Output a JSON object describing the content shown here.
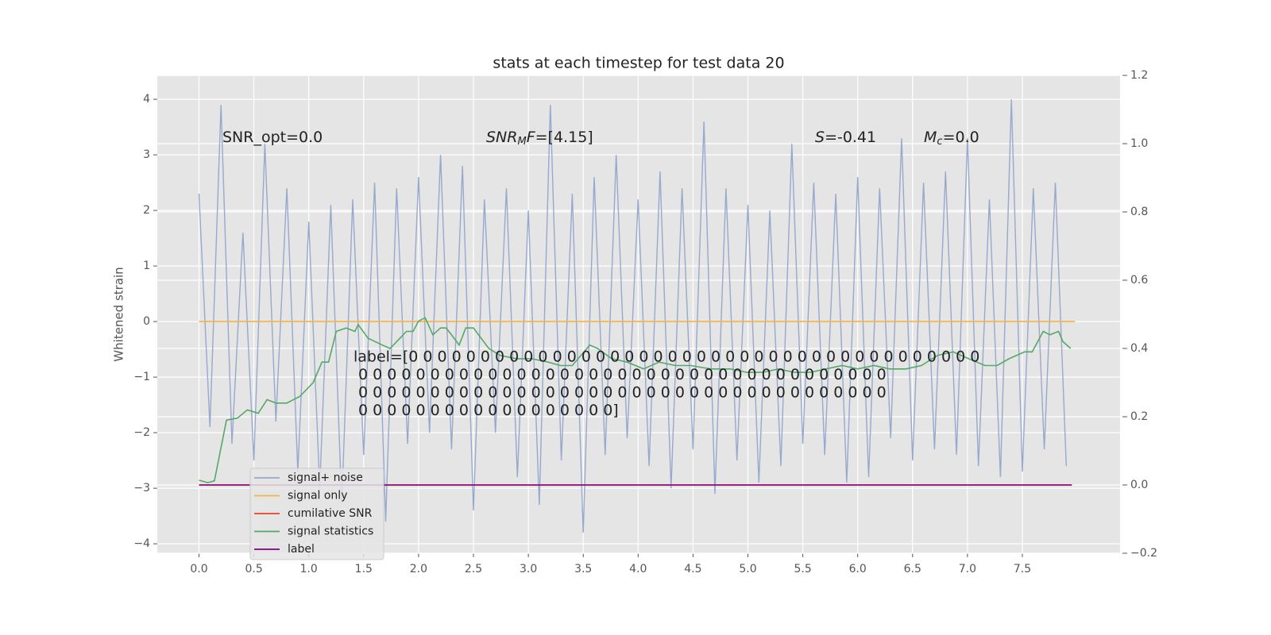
{
  "chart_data": {
    "type": "line",
    "title": "stats at each timestep for test data 20",
    "ylabel": "Whitened strain",
    "xlim": [
      -0.38,
      8.39
    ],
    "ylim": [
      -4.17,
      4.43
    ],
    "y2lim": [
      -0.2,
      1.2
    ],
    "xticks": [
      {
        "value": 0,
        "label": "0.0"
      },
      {
        "value": 0.5,
        "label": "0.5"
      },
      {
        "value": 1,
        "label": "1.0"
      },
      {
        "value": 1.5,
        "label": "1.5"
      },
      {
        "value": 2,
        "label": "2.0"
      },
      {
        "value": 2.5,
        "label": "2.5"
      },
      {
        "value": 3,
        "label": "3.0"
      },
      {
        "value": 3.5,
        "label": "3.5"
      },
      {
        "value": 4,
        "label": "4.0"
      },
      {
        "value": 4.5,
        "label": "4.5"
      },
      {
        "value": 5,
        "label": "5.0"
      },
      {
        "value": 5.5,
        "label": "5.5"
      },
      {
        "value": 6,
        "label": "6.0"
      },
      {
        "value": 6.5,
        "label": "6.5"
      },
      {
        "value": 7,
        "label": "7.0"
      },
      {
        "value": 7.5,
        "label": "7.5"
      }
    ],
    "yticks": [
      {
        "value": -4,
        "label": "−4"
      },
      {
        "value": -3,
        "label": "−3"
      },
      {
        "value": -2,
        "label": "−2"
      },
      {
        "value": -1,
        "label": "−1"
      },
      0,
      1,
      2,
      3,
      4
    ],
    "y2ticks": [
      {
        "value": -0.2,
        "label": "−0.2"
      },
      {
        "value": 0,
        "label": "0.0"
      },
      {
        "value": 0.2,
        "label": "0.2"
      },
      {
        "value": 0.4,
        "label": "0.4"
      },
      {
        "value": 0.6,
        "label": "0.6"
      },
      {
        "value": 0.8,
        "label": "0.8"
      },
      {
        "value": 1.0,
        "label": "1.0"
      },
      {
        "value": 1.2,
        "label": "1.2"
      }
    ],
    "grid": true,
    "legend": "lower left",
    "series": [
      {
        "name": "signal+ noise",
        "color": "#97a9cc",
        "x": [
          0,
          0.1,
          0.2,
          0.3,
          0.4,
          0.5,
          0.6,
          0.7,
          0.8,
          0.9,
          1,
          1.1,
          1.2,
          1.3,
          1.4,
          1.5,
          1.6,
          1.7,
          1.8,
          1.9,
          2,
          2.1,
          2.2,
          2.3,
          2.4,
          2.5,
          2.6,
          2.7,
          2.8,
          2.9,
          3,
          3.1,
          3.2,
          3.3,
          3.4,
          3.5,
          3.6,
          3.7,
          3.8,
          3.9,
          4,
          4.1,
          4.2,
          4.3,
          4.4,
          4.5,
          4.6,
          4.7,
          4.8,
          4.9,
          5,
          5.1,
          5.2,
          5.3,
          5.4,
          5.5,
          5.6,
          5.7,
          5.8,
          5.9,
          6,
          6.1,
          6.2,
          6.3,
          6.4,
          6.5,
          6.6,
          6.7,
          6.8,
          6.9,
          7,
          7.1,
          7.2,
          7.3,
          7.4,
          7.5,
          7.6,
          7.7,
          7.8,
          7.9
        ],
        "values": [
          2.3,
          -1.9,
          3.9,
          -2.2,
          1.6,
          -2.5,
          3.2,
          -1.8,
          2.4,
          -2.7,
          1.8,
          -3.0,
          2.1,
          -3.3,
          2.2,
          -2.4,
          2.5,
          -3.6,
          2.4,
          -2.2,
          2.6,
          -2.0,
          3.0,
          -2.3,
          2.8,
          -3.4,
          2.2,
          -2.0,
          2.4,
          -2.8,
          2.0,
          -3.3,
          3.9,
          -2.5,
          2.3,
          -3.8,
          2.6,
          -2.4,
          3.0,
          -2.1,
          2.2,
          -2.6,
          2.7,
          -3.0,
          2.4,
          -2.3,
          3.6,
          -3.1,
          2.4,
          -2.5,
          2.1,
          -2.9,
          2.0,
          -2.6,
          3.2,
          -2.2,
          2.5,
          -2.4,
          2.3,
          -2.9,
          2.6,
          -2.8,
          2.4,
          -2.1,
          3.3,
          -2.5,
          2.5,
          -2.3,
          2.7,
          -2.4,
          3.3,
          -2.6,
          2.2,
          -2.8,
          4.0,
          -2.7,
          2.4,
          -2.3,
          2.5,
          -2.6
        ]
      },
      {
        "name": "signal only",
        "color": "#f0b449",
        "x": [
          0,
          7.98
        ],
        "values": [
          0,
          0
        ]
      },
      {
        "name": "cumilative SNR",
        "color": "#e8412b",
        "axis": "y2",
        "x": [
          0,
          7.95
        ],
        "values": [
          0,
          0
        ]
      },
      {
        "name": "signal statistics",
        "color": "#55a868",
        "axis": "y2",
        "x": [
          0,
          0.08,
          0.14,
          0.25,
          0.35,
          0.44,
          0.54,
          0.62,
          0.7,
          0.8,
          0.92,
          1.04,
          1.12,
          1.18,
          1.25,
          1.34,
          1.42,
          1.45,
          1.54,
          1.67,
          1.74,
          1.8,
          1.89,
          1.95,
          2.0,
          2.06,
          2.13,
          2.2,
          2.25,
          2.3,
          2.37,
          2.43,
          2.5,
          2.57,
          2.64,
          2.74,
          2.89,
          3.03,
          3.18,
          3.29,
          3.4,
          3.56,
          3.63,
          3.76,
          3.9,
          4.05,
          4.19,
          4.34,
          4.48,
          4.66,
          4.84,
          4.99,
          5.13,
          5.28,
          5.42,
          5.57,
          5.71,
          5.86,
          6.0,
          6.15,
          6.29,
          6.44,
          6.58,
          6.73,
          6.87,
          7.01,
          7.16,
          7.27,
          7.38,
          7.52,
          7.59,
          7.69,
          7.75,
          7.83,
          7.87,
          7.94
        ],
        "values": [
          0.014,
          0.007,
          0.012,
          0.19,
          0.196,
          0.22,
          0.21,
          0.25,
          0.24,
          0.24,
          0.26,
          0.3,
          0.36,
          0.36,
          0.45,
          0.46,
          0.45,
          0.47,
          0.43,
          0.41,
          0.4,
          0.42,
          0.45,
          0.45,
          0.48,
          0.49,
          0.44,
          0.46,
          0.46,
          0.44,
          0.41,
          0.46,
          0.46,
          0.43,
          0.4,
          0.38,
          0.37,
          0.37,
          0.36,
          0.35,
          0.35,
          0.41,
          0.4,
          0.37,
          0.36,
          0.34,
          0.36,
          0.35,
          0.35,
          0.34,
          0.34,
          0.33,
          0.33,
          0.34,
          0.33,
          0.33,
          0.34,
          0.35,
          0.34,
          0.35,
          0.34,
          0.34,
          0.35,
          0.38,
          0.39,
          0.37,
          0.35,
          0.35,
          0.37,
          0.39,
          0.39,
          0.45,
          0.44,
          0.45,
          0.42,
          0.4
        ]
      },
      {
        "name": "label",
        "color": "#800080",
        "axis": "y2",
        "x": [
          0,
          7.95
        ],
        "values": [
          0,
          0
        ]
      }
    ],
    "annotations": [
      {
        "parts": [
          {
            "text": "SNR_opt=0.0"
          }
        ]
      },
      {
        "parts": [
          {
            "text": "SNR",
            "italic": true
          },
          {
            "text": "M",
            "italic": true,
            "sub": true
          },
          {
            "text": "F",
            "italic": true
          },
          {
            "text": "=[4.15]"
          }
        ]
      },
      {
        "parts": [
          {
            "text": "S",
            "italic": true
          },
          {
            "text": "=-0.41"
          }
        ]
      },
      {
        "parts": [
          {
            "text": "M",
            "italic": true
          },
          {
            "text": "c",
            "italic": true,
            "sub": true
          },
          {
            "text": "=0.0"
          }
        ]
      }
    ],
    "label_text": [
      "label=[0 0 0 0 0 0 0 0 0 0 0 0 0 0 0 0 0 0 0 0 0 0 0 0 0 0 0 0 0 0 0 0 0 0 0 0 0 0 0 0",
      " 0 0 0 0 0 0 0 0 0 0 0 0 0 0 0 0 0 0 0 0 0 0 0 0 0 0 0 0 0 0 0 0 0 0 0 0 0",
      " 0 0 0 0 0 0 0 0 0 0 0 0 0 0 0 0 0 0 0 0 0 0 0 0 0 0 0 0 0 0 0 0 0 0 0 0 0",
      " 0 0 0 0 0 0 0 0 0 0 0 0 0 0 0 0 0 0]"
    ]
  }
}
